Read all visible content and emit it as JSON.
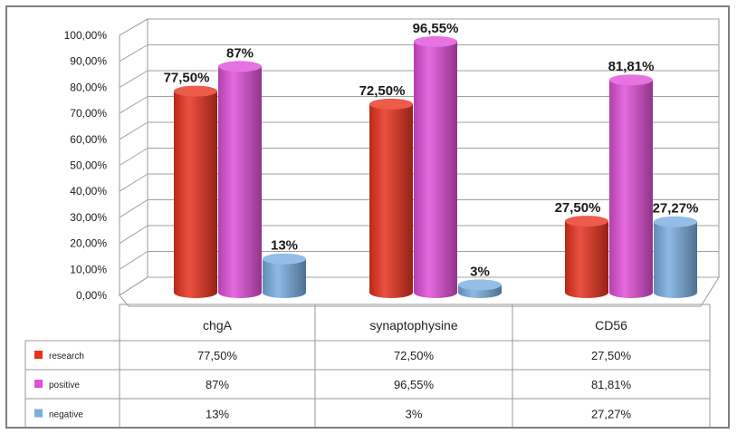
{
  "chart_data": {
    "type": "bar",
    "categories": [
      "chgA",
      "synaptophysine",
      "CD56"
    ],
    "series": [
      {
        "name": "research",
        "values": [
          77.5,
          72.5,
          27.5
        ],
        "labels": [
          "77,50%",
          "72,50%",
          "27,50%"
        ],
        "table": [
          "77,50%",
          "72,50%",
          "27,50%"
        ],
        "color": "#e8321e"
      },
      {
        "name": "positive",
        "values": [
          87,
          96.55,
          81.81
        ],
        "labels": [
          "87%",
          "96,55%",
          "81,81%"
        ],
        "table": [
          "87%",
          "96,55%",
          "81,81%"
        ],
        "color": "#e050d8"
      },
      {
        "name": "negative",
        "values": [
          13,
          3,
          27.27
        ],
        "labels": [
          "13%",
          "3%",
          "27,27%"
        ],
        "table": [
          "13%",
          "3%",
          "27,27%"
        ],
        "color": "#7aaee0"
      }
    ],
    "yticks": [
      "0,00%",
      "10,00%",
      "20,00%",
      "30,00%",
      "40,00%",
      "50,00%",
      "60,00%",
      "70,00%",
      "80,00%",
      "90,00%",
      "100,00%"
    ],
    "ylim": [
      0,
      100
    ],
    "grid": true,
    "legend": "data-table-left",
    "style": "3d-cylinder"
  }
}
